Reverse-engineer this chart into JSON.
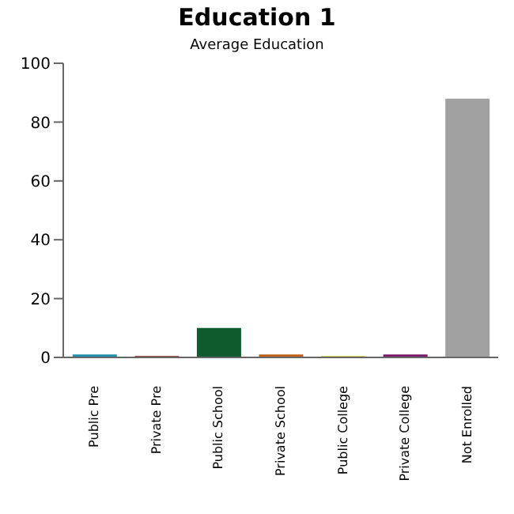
{
  "chart_data": {
    "type": "bar",
    "title": "Education 1",
    "subtitle": "Average Education",
    "categories": [
      "Public Pre",
      "Private Pre",
      "Public School",
      "Private School",
      "Public College",
      "Private College",
      "Not Enrolled"
    ],
    "values": [
      1,
      0.5,
      10,
      1,
      0.5,
      1,
      88
    ],
    "colors": [
      "#1f8ea8",
      "#7a1010",
      "#0f5a2e",
      "#c0601a",
      "#c8c828",
      "#7a1a6a",
      "#a0a0a0"
    ],
    "ylim": [
      0,
      100
    ],
    "yticks": [
      0,
      20,
      40,
      60,
      80,
      100
    ],
    "grid": false
  }
}
